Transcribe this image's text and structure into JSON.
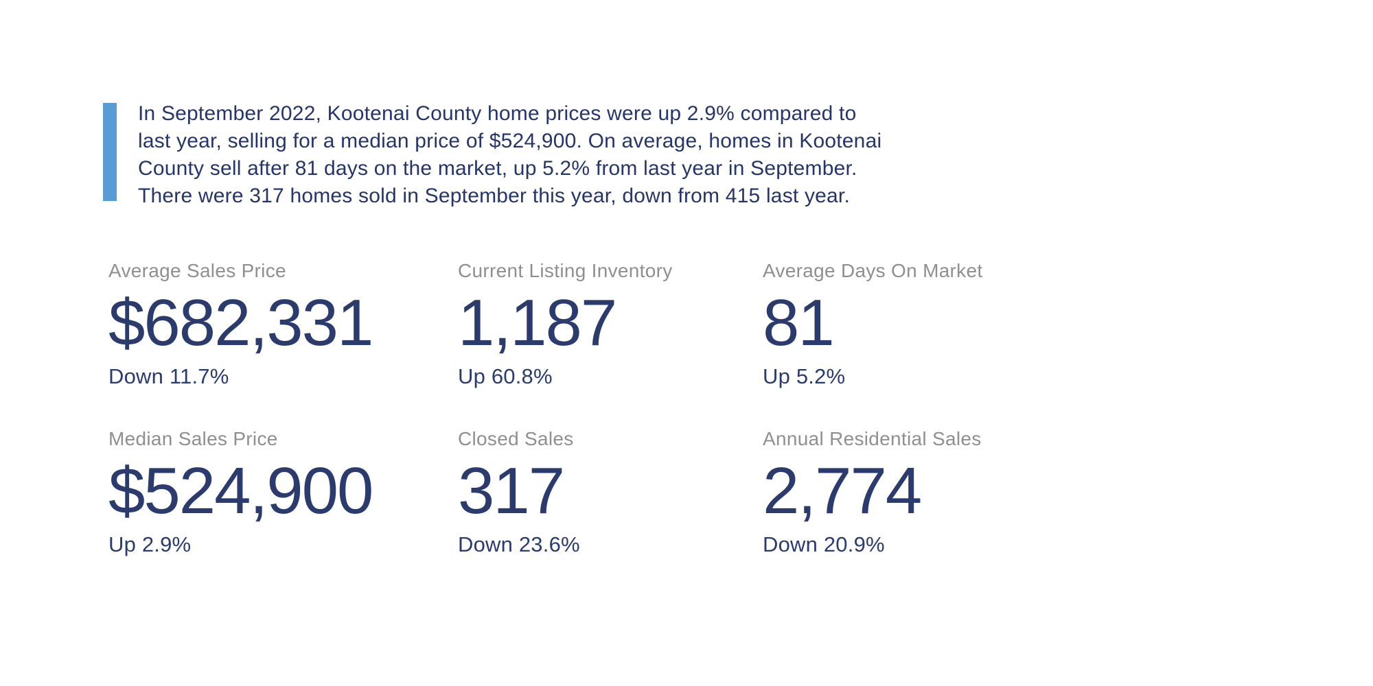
{
  "quote": {
    "text": "In September 2022, Kootenai County home prices were up 2.9% compared to\nlast year, selling for a median price of $524,900. On average, homes in Kootenai\nCounty sell after 81 days on the market, up 5.2% from last year in September.\nThere were 317 homes sold in September this year, down from 415 last year."
  },
  "colors": {
    "accent_bar_blue": "#5B9BD5",
    "paragraph_navy": "#263569",
    "stat_navy": "#2B3B6E",
    "label_gray": "#8F8F8F",
    "background": "#FFFFFF"
  },
  "stats": [
    {
      "label": "Average Sales Price",
      "value": "$682,331",
      "change": "Down 11.7%"
    },
    {
      "label": "Current Listing Inventory",
      "value": "1,187",
      "change": "Up 60.8%"
    },
    {
      "label": "Average Days On Market",
      "value": "81",
      "change": "Up 5.2%"
    },
    {
      "label": "Median Sales Price",
      "value": "$524,900",
      "change": "Up 2.9%"
    },
    {
      "label": "Closed Sales",
      "value": "317",
      "change": "Down 23.6%"
    },
    {
      "label": "Annual Residential Sales",
      "value": "2,774",
      "change": "Down 20.9%"
    }
  ]
}
